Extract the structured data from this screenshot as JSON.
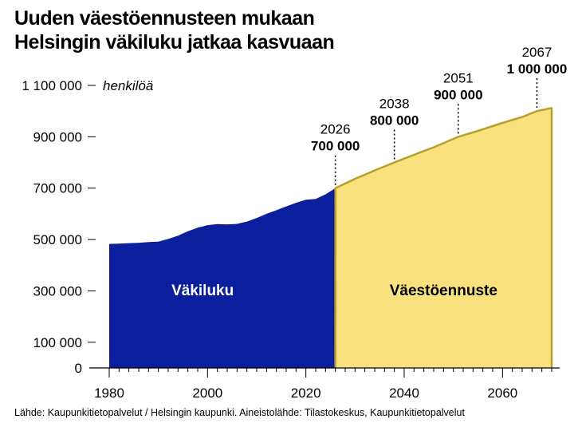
{
  "title_lines": [
    "Uuden väestöennusteen mukaan",
    "Helsingin väkiluku jatkaa kasvuaan"
  ],
  "source": "Lähde: Kaupunkitietopalvelut / Helsingin kaupunki. Aineistolähde: Tilastokeskus, Kaupunkitietopalvelut",
  "chart_data": {
    "type": "area",
    "title": "Uuden väestöennusteen mukaan Helsingin väkiluku jatkaa kasvuaan",
    "ylabel": "henkilöä",
    "xlim": [
      1980,
      2070
    ],
    "ylim": [
      0,
      1100000
    ],
    "x_ticks": [
      1980,
      2000,
      2020,
      2040,
      2060
    ],
    "x_tick_labels": [
      "1980",
      "2000",
      "2020",
      "2040",
      "2060"
    ],
    "y_ticks": [
      0,
      100000,
      300000,
      500000,
      700000,
      900000,
      1100000
    ],
    "y_tick_labels": [
      "0",
      "100 000",
      "300 000",
      "500 000",
      "700 000",
      "900 000",
      "1 100 000"
    ],
    "series": [
      {
        "name": "Väkiluku",
        "color": "#0a1e9e",
        "x": [
          1980,
          1982,
          1984,
          1986,
          1988,
          1990,
          1992,
          1994,
          1996,
          1998,
          2000,
          2002,
          2004,
          2006,
          2008,
          2010,
          2012,
          2014,
          2016,
          2018,
          2020,
          2022,
          2024,
          2026
        ],
        "y": [
          483000,
          484000,
          486000,
          487000,
          490000,
          492000,
          502000,
          515000,
          532000,
          546000,
          556000,
          560000,
          559000,
          561000,
          570000,
          584000,
          600000,
          614000,
          629000,
          643000,
          655000,
          658000,
          676000,
          700000
        ]
      },
      {
        "name": "Väestöennuste",
        "color": "#f9e27d",
        "line_color": "#b5a02a",
        "x": [
          2026,
          2030,
          2034,
          2038,
          2042,
          2046,
          2051,
          2055,
          2060,
          2064,
          2067,
          2070
        ],
        "y": [
          700000,
          736000,
          769000,
          800000,
          830000,
          859000,
          900000,
          923000,
          954000,
          977000,
          1000000,
          1012000
        ]
      }
    ],
    "annotations": [
      {
        "year": "2026",
        "value": "700 000",
        "x": 2026,
        "y": 700000
      },
      {
        "year": "2038",
        "value": "800 000",
        "x": 2038,
        "y": 800000
      },
      {
        "year": "2051",
        "value": "900 000",
        "x": 2051,
        "y": 900000
      },
      {
        "year": "2067",
        "value": "1 000 000",
        "x": 2067,
        "y": 1000000
      }
    ]
  }
}
